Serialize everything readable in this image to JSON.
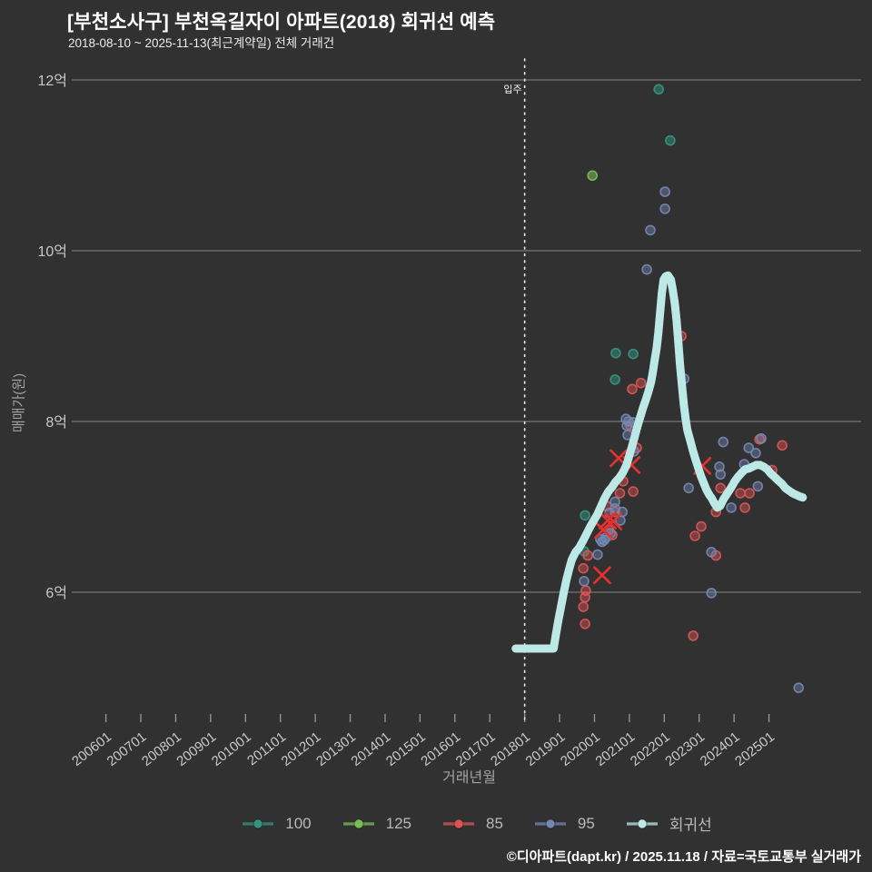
{
  "header": {
    "title": "[부천소사구] 부천옥길자이 아파트(2018) 회귀선 예측",
    "subtitle": "2018-08-10 ~ 2025-11-13(최근계약일) 전체 거래건"
  },
  "axes": {
    "y_title": "매매가(원)",
    "x_title": "거래년월",
    "y_ticks": [
      {
        "value": 12,
        "label": "12억"
      },
      {
        "value": 10,
        "label": "10억"
      },
      {
        "value": 8,
        "label": "8억"
      },
      {
        "value": 6,
        "label": "6억"
      }
    ],
    "x_ticks": [
      {
        "year": 2006,
        "label": "200601"
      },
      {
        "year": 2007,
        "label": "200701"
      },
      {
        "year": 2008,
        "label": "200801"
      },
      {
        "year": 2009,
        "label": "200901"
      },
      {
        "year": 2010,
        "label": "201001"
      },
      {
        "year": 2011,
        "label": "201101"
      },
      {
        "year": 2012,
        "label": "201201"
      },
      {
        "year": 2013,
        "label": "201301"
      },
      {
        "year": 2014,
        "label": "201401"
      },
      {
        "year": 2015,
        "label": "201501"
      },
      {
        "year": 2016,
        "label": "201601"
      },
      {
        "year": 2017,
        "label": "201701"
      },
      {
        "year": 2018,
        "label": "201801"
      },
      {
        "year": 2019,
        "label": "201901"
      },
      {
        "year": 2020,
        "label": "202001"
      },
      {
        "year": 2021,
        "label": "202101"
      },
      {
        "year": 2022,
        "label": "202201"
      },
      {
        "year": 2023,
        "label": "202301"
      },
      {
        "year": 2024,
        "label": "202401"
      },
      {
        "year": 2025,
        "label": "202501"
      }
    ]
  },
  "annotation": {
    "move_in_label": "입주",
    "move_in_year": 2018.0
  },
  "legend": {
    "items": [
      {
        "label": "100",
        "color": "#35937f"
      },
      {
        "label": "125",
        "color": "#79bd57"
      },
      {
        "label": "85",
        "color": "#d95555"
      },
      {
        "label": "95",
        "color": "#7487b3"
      },
      {
        "label": "회귀선",
        "color": "#bce9e5"
      }
    ]
  },
  "footer": {
    "credit": "©디아파트(dapt.kr) / 2025.11.18 / 자료=국토교통부 실거래가"
  },
  "colors": {
    "background": "#313131",
    "gridline": "#757575",
    "tick_mark": "#9a9a9a",
    "tick_text": "#c9c9c9",
    "axis_title": "#a2a2a2",
    "title_text": "#ffffff",
    "dotted_line": "#e4e4e4",
    "outlier_x": "#e53030",
    "regression": "#bce9e5"
  },
  "chart_data": {
    "type": "scatter",
    "title": "[부천소사구] 부천옥길자이 아파트(2018) 회귀선 예측",
    "xlabel": "거래년월",
    "ylabel": "매매가(원)",
    "x_range_years": [
      2005.2,
      2027.6
    ],
    "y_range_eok": [
      4.5,
      12.25
    ],
    "grid": true,
    "legend_position": "bottom-center",
    "unit": "억",
    "series": [
      {
        "name": "100",
        "color": "#35937f",
        "fill_opacity": 0.5,
        "points": [
          [
            2021.84,
            11.89
          ],
          [
            2022.17,
            11.29
          ],
          [
            2020.61,
            8.8
          ],
          [
            2021.11,
            8.79
          ],
          [
            2020.59,
            8.49
          ],
          [
            2019.73,
            6.9
          ],
          [
            2019.7,
            6.48
          ]
        ]
      },
      {
        "name": "125",
        "color": "#79bd57",
        "fill_opacity": 0.55,
        "points": [
          [
            2019.94,
            10.88
          ]
        ]
      },
      {
        "name": "85",
        "color": "#d95555",
        "fill_opacity": 0.45,
        "points": [
          [
            2022.49,
            9.0
          ],
          [
            2021.33,
            8.45
          ],
          [
            2021.08,
            8.38
          ],
          [
            2021.03,
            7.95
          ],
          [
            2021.21,
            7.69
          ],
          [
            2020.82,
            7.3
          ],
          [
            2020.73,
            7.16
          ],
          [
            2021.11,
            7.18
          ],
          [
            2020.35,
            7.01
          ],
          [
            2020.59,
            6.94
          ],
          [
            2020.41,
            6.73
          ],
          [
            2020.51,
            6.67
          ],
          [
            2019.81,
            6.43
          ],
          [
            2019.68,
            6.28
          ],
          [
            2019.75,
            6.02
          ],
          [
            2019.73,
            5.94
          ],
          [
            2019.68,
            5.83
          ],
          [
            2019.73,
            5.63
          ],
          [
            2022.83,
            5.49
          ],
          [
            2023.48,
            6.94
          ],
          [
            2023.06,
            6.77
          ],
          [
            2022.88,
            6.66
          ],
          [
            2023.48,
            6.43
          ],
          [
            2023.61,
            7.22
          ],
          [
            2024.18,
            7.16
          ],
          [
            2024.44,
            7.16
          ],
          [
            2024.31,
            6.99
          ],
          [
            2024.73,
            7.79
          ],
          [
            2025.38,
            7.72
          ],
          [
            2025.09,
            7.43
          ]
        ]
      },
      {
        "name": "95",
        "color": "#7487b3",
        "fill_opacity": 0.42,
        "points": [
          [
            2022.02,
            10.69
          ],
          [
            2022.02,
            10.49
          ],
          [
            2021.6,
            10.24
          ],
          [
            2021.5,
            9.78
          ],
          [
            2022.57,
            8.5
          ],
          [
            2020.9,
            8.03
          ],
          [
            2020.98,
            8.0
          ],
          [
            2021.11,
            7.99
          ],
          [
            2020.93,
            7.95
          ],
          [
            2020.95,
            7.84
          ],
          [
            2021.13,
            7.65
          ],
          [
            2022.7,
            7.22
          ],
          [
            2020.59,
            7.06
          ],
          [
            2020.59,
            6.98
          ],
          [
            2020.43,
            6.93
          ],
          [
            2020.8,
            6.94
          ],
          [
            2020.74,
            6.84
          ],
          [
            2020.46,
            6.69
          ],
          [
            2020.33,
            6.64
          ],
          [
            2020.22,
            6.59
          ],
          [
            2020.17,
            6.62
          ],
          [
            2020.28,
            6.61
          ],
          [
            2020.09,
            6.44
          ],
          [
            2019.7,
            6.13
          ],
          [
            2023.69,
            7.76
          ],
          [
            2024.42,
            7.69
          ],
          [
            2024.62,
            7.63
          ],
          [
            2023.58,
            7.47
          ],
          [
            2023.61,
            7.38
          ],
          [
            2024.29,
            7.5
          ],
          [
            2024.78,
            7.8
          ],
          [
            2024.68,
            7.24
          ],
          [
            2023.92,
            6.99
          ],
          [
            2023.35,
            6.47
          ],
          [
            2023.35,
            5.99
          ],
          [
            2025.85,
            4.88
          ]
        ]
      }
    ],
    "outliers": {
      "marker": "x",
      "color": "#e53030",
      "points": [
        [
          2020.69,
          7.57
        ],
        [
          2021.06,
          7.49
        ],
        [
          2023.09,
          7.48
        ],
        [
          2020.38,
          6.84
        ],
        [
          2020.54,
          6.83
        ],
        [
          2020.25,
          6.73
        ],
        [
          2020.22,
          6.2
        ]
      ]
    },
    "regression": {
      "name": "회귀선",
      "color": "#bce9e5",
      "points": [
        [
          2017.74,
          5.34
        ],
        [
          2018.83,
          5.34
        ],
        [
          2018.89,
          5.49
        ],
        [
          2018.96,
          5.66
        ],
        [
          2019.04,
          5.83
        ],
        [
          2019.12,
          6.0
        ],
        [
          2019.2,
          6.15
        ],
        [
          2019.28,
          6.28
        ],
        [
          2019.35,
          6.38
        ],
        [
          2019.46,
          6.47
        ],
        [
          2019.56,
          6.52
        ],
        [
          2019.67,
          6.6
        ],
        [
          2019.77,
          6.68
        ],
        [
          2019.88,
          6.77
        ],
        [
          2019.98,
          6.84
        ],
        [
          2020.08,
          6.91
        ],
        [
          2020.19,
          7.01
        ],
        [
          2020.29,
          7.1
        ],
        [
          2020.4,
          7.18
        ],
        [
          2020.5,
          7.23
        ],
        [
          2020.6,
          7.29
        ],
        [
          2020.71,
          7.34
        ],
        [
          2020.81,
          7.4
        ],
        [
          2020.92,
          7.49
        ],
        [
          2020.99,
          7.59
        ],
        [
          2021.07,
          7.7
        ],
        [
          2021.15,
          7.82
        ],
        [
          2021.23,
          7.94
        ],
        [
          2021.31,
          8.05
        ],
        [
          2021.39,
          8.16
        ],
        [
          2021.46,
          8.24
        ],
        [
          2021.54,
          8.34
        ],
        [
          2021.62,
          8.46
        ],
        [
          2021.67,
          8.57
        ],
        [
          2021.72,
          8.71
        ],
        [
          2021.78,
          8.86
        ],
        [
          2021.83,
          9.04
        ],
        [
          2021.88,
          9.27
        ],
        [
          2021.93,
          9.5
        ],
        [
          2021.98,
          9.66
        ],
        [
          2022.04,
          9.7
        ],
        [
          2022.11,
          9.71
        ],
        [
          2022.19,
          9.66
        ],
        [
          2022.24,
          9.55
        ],
        [
          2022.3,
          9.39
        ],
        [
          2022.35,
          9.19
        ],
        [
          2022.4,
          8.94
        ],
        [
          2022.45,
          8.67
        ],
        [
          2022.51,
          8.41
        ],
        [
          2022.56,
          8.2
        ],
        [
          2022.61,
          8.03
        ],
        [
          2022.66,
          7.9
        ],
        [
          2022.74,
          7.78
        ],
        [
          2022.82,
          7.66
        ],
        [
          2022.9,
          7.55
        ],
        [
          2022.97,
          7.46
        ],
        [
          2023.05,
          7.36
        ],
        [
          2023.13,
          7.28
        ],
        [
          2023.21,
          7.2
        ],
        [
          2023.29,
          7.14
        ],
        [
          2023.36,
          7.1
        ],
        [
          2023.44,
          7.04
        ],
        [
          2023.52,
          6.99
        ],
        [
          2023.6,
          7.01
        ],
        [
          2023.7,
          7.09
        ],
        [
          2023.81,
          7.16
        ],
        [
          2023.91,
          7.22
        ],
        [
          2024.02,
          7.3
        ],
        [
          2024.11,
          7.35
        ],
        [
          2024.22,
          7.4
        ],
        [
          2024.32,
          7.44
        ],
        [
          2024.43,
          7.45
        ],
        [
          2024.53,
          7.47
        ],
        [
          2024.64,
          7.49
        ],
        [
          2024.74,
          7.49
        ],
        [
          2024.85,
          7.47
        ],
        [
          2024.95,
          7.44
        ],
        [
          2025.05,
          7.39
        ],
        [
          2025.16,
          7.35
        ],
        [
          2025.26,
          7.31
        ],
        [
          2025.37,
          7.27
        ],
        [
          2025.47,
          7.22
        ],
        [
          2025.57,
          7.19
        ],
        [
          2025.68,
          7.16
        ],
        [
          2025.78,
          7.14
        ],
        [
          2025.89,
          7.12
        ],
        [
          2025.97,
          7.11
        ]
      ]
    }
  }
}
